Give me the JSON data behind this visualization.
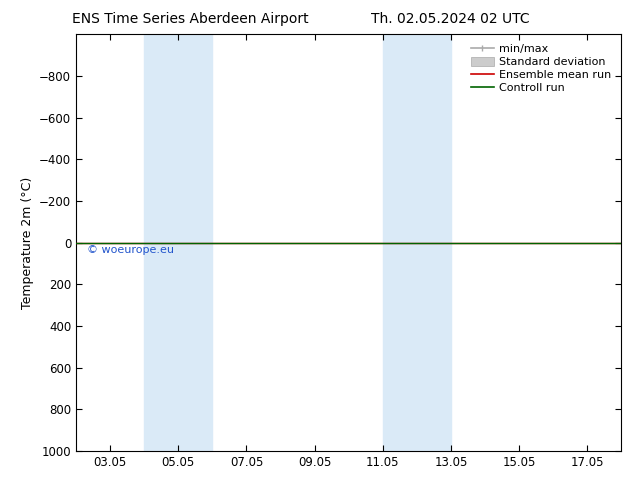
{
  "title_left": "ENS Time Series Aberdeen Airport",
  "title_right": "Th. 02.05.2024 02 UTC",
  "ylabel": "Temperature 2m (°C)",
  "ylim_top": -1000,
  "ylim_bottom": 1000,
  "yticks": [
    -800,
    -600,
    -400,
    -200,
    0,
    200,
    400,
    600,
    800,
    1000
  ],
  "xlim_left": 2.0,
  "xlim_right": 18.0,
  "xtick_labels": [
    "03.05",
    "05.05",
    "07.05",
    "09.05",
    "11.05",
    "13.05",
    "15.05",
    "17.05"
  ],
  "xtick_positions": [
    3,
    5,
    7,
    9,
    11,
    13,
    15,
    17
  ],
  "shaded_bands": [
    {
      "start": 4.0,
      "end": 6.0
    },
    {
      "start": 11.0,
      "end": 13.0
    }
  ],
  "shade_color": "#daeaf7",
  "control_run_y": 0,
  "control_run_color": "#006400",
  "ensemble_mean_color": "#cc0000",
  "minmax_color": "#aaaaaa",
  "stddev_color": "#cccccc",
  "watermark_text": "© woeurope.eu",
  "watermark_color": "#2255cc",
  "bg_color": "#ffffff",
  "plot_bg_color": "#ffffff",
  "legend_entries": [
    "min/max",
    "Standard deviation",
    "Ensemble mean run",
    "Controll run"
  ],
  "title_fontsize": 10,
  "axis_label_fontsize": 9,
  "tick_fontsize": 8.5,
  "legend_fontsize": 8
}
